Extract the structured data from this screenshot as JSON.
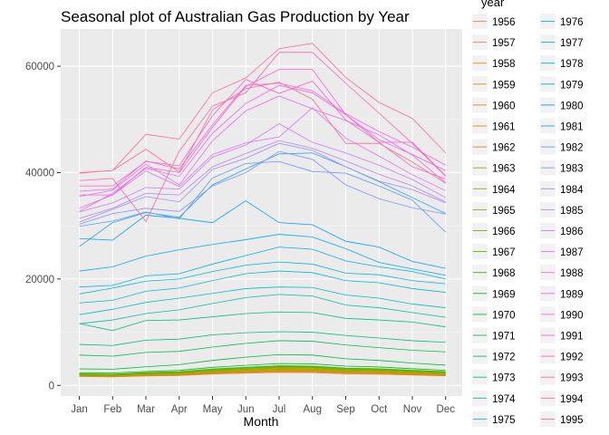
{
  "chart_data": {
    "type": "line",
    "title": "Seasonal plot of Australian Gas Production by Year",
    "xlabel": "Month",
    "ylabel": "",
    "legend_title": "year",
    "legend_position": "right",
    "grid": true,
    "categories": [
      "Jan",
      "Feb",
      "Mar",
      "Apr",
      "May",
      "Jun",
      "Jul",
      "Aug",
      "Sep",
      "Oct",
      "Nov",
      "Dec"
    ],
    "ylim": [
      -2000,
      67000
    ],
    "yticks": [
      0,
      20000,
      40000,
      60000
    ],
    "ytick_labels": [
      "0",
      "20000",
      "40000",
      "60000"
    ],
    "series": [
      {
        "name": "1956",
        "color": "#F8766D",
        "values": [
          1709,
          1646,
          1794,
          1878,
          2173,
          2321,
          2468,
          2416,
          2184,
          2121,
          1962,
          1825
        ]
      },
      {
        "name": "1957",
        "color": "#F07F54",
        "values": [
          1690,
          1607,
          1774,
          1862,
          2145,
          2315,
          2481,
          2429,
          2202,
          2129,
          1955,
          1803
        ]
      },
      {
        "name": "1958",
        "color": "#E7861B",
        "values": [
          1715,
          1640,
          1821,
          1910,
          2227,
          2401,
          2570,
          2526,
          2279,
          2207,
          2027,
          1869
        ]
      },
      {
        "name": "1959",
        "color": "#DC8E00",
        "values": [
          1767,
          1668,
          1882,
          1980,
          2322,
          2510,
          2690,
          2648,
          2389,
          2309,
          2117,
          1945
        ]
      },
      {
        "name": "1960",
        "color": "#D09400",
        "values": [
          1790,
          1712,
          1925,
          2036,
          2399,
          2600,
          2791,
          2745,
          2477,
          2393,
          2191,
          2012
        ]
      },
      {
        "name": "1961",
        "color": "#C49A00",
        "values": [
          1811,
          1757,
          1979,
          2090,
          2463,
          2689,
          2889,
          2844,
          2563,
          2474,
          2264,
          2076
        ]
      },
      {
        "name": "1962",
        "color": "#B69F00",
        "values": [
          1853,
          1804,
          2035,
          2155,
          2547,
          2786,
          3003,
          2952,
          2655,
          2562,
          2342,
          2144
        ]
      },
      {
        "name": "1963",
        "color": "#A8A400",
        "values": [
          1900,
          1849,
          2091,
          2215,
          2626,
          2878,
          3109,
          3055,
          2744,
          2646,
          2418,
          2211
        ]
      },
      {
        "name": "1964",
        "color": "#97A900",
        "values": [
          1954,
          1904,
          2158,
          2287,
          2718,
          2987,
          3230,
          3176,
          2850,
          2744,
          2508,
          2291
        ]
      },
      {
        "name": "1965",
        "color": "#86AC00",
        "values": [
          2006,
          1953,
          2223,
          2360,
          2810,
          3096,
          3353,
          3297,
          2955,
          2843,
          2595,
          2366
        ]
      },
      {
        "name": "1966",
        "color": "#72B000",
        "values": [
          2064,
          2015,
          2296,
          2440,
          2912,
          3212,
          3480,
          3421,
          3066,
          2947,
          2689,
          2449
        ]
      },
      {
        "name": "1967",
        "color": "#5BB300",
        "values": [
          2112,
          2063,
          2355,
          2505,
          2995,
          3307,
          3586,
          3524,
          3157,
          3034,
          2767,
          2517
        ]
      },
      {
        "name": "1968",
        "color": "#39B600",
        "values": [
          2165,
          2115,
          2418,
          2575,
          3085,
          3411,
          3702,
          3637,
          3257,
          3128,
          2851,
          2591
        ]
      },
      {
        "name": "1969",
        "color": "#00B81F",
        "values": [
          2380,
          2350,
          2620,
          2820,
          3400,
          3770,
          4110,
          4060,
          3620,
          3460,
          3140,
          2840
        ]
      },
      {
        "name": "1970",
        "color": "#00BA38",
        "values": [
          3100,
          3050,
          3500,
          3900,
          4700,
          5300,
          5800,
          5700,
          5000,
          4700,
          4200,
          3800
        ]
      },
      {
        "name": "1971",
        "color": "#00BC59",
        "values": [
          5700,
          5500,
          6200,
          6400,
          7200,
          7900,
          8400,
          8300,
          7600,
          7100,
          6600,
          6300
        ]
      },
      {
        "name": "1972",
        "color": "#00BF72",
        "values": [
          7700,
          7500,
          8500,
          8700,
          9500,
          9900,
          10100,
          10000,
          9400,
          8900,
          8400,
          8100
        ]
      },
      {
        "name": "1973",
        "color": "#00C08B",
        "values": [
          11600,
          10300,
          12200,
          12300,
          12900,
          13500,
          13800,
          13700,
          12600,
          12300,
          11900,
          11000
        ]
      },
      {
        "name": "1974",
        "color": "#00C1A2",
        "values": [
          11600,
          12300,
          13500,
          14200,
          15400,
          16500,
          17100,
          16800,
          15100,
          14600,
          13700,
          12800
        ]
      },
      {
        "name": "1975",
        "color": "#00C0B8",
        "values": [
          13300,
          14300,
          15600,
          16400,
          17300,
          18200,
          18500,
          18400,
          17000,
          16400,
          15300,
          14600
        ]
      },
      {
        "name": "1976",
        "color": "#00BDC9",
        "values": [
          15500,
          16000,
          17700,
          18300,
          19700,
          21000,
          21500,
          21200,
          19700,
          19300,
          18200,
          17500
        ]
      },
      {
        "name": "1977",
        "color": "#00B9DA",
        "values": [
          17200,
          18300,
          19600,
          20000,
          21400,
          22600,
          23200,
          22800,
          21100,
          20800,
          19700,
          19100
        ]
      },
      {
        "name": "1978",
        "color": "#00B2E8",
        "values": [
          18500,
          18800,
          20600,
          21000,
          22800,
          24400,
          26000,
          25600,
          23400,
          22300,
          21400,
          20000
        ]
      },
      {
        "name": "1979",
        "color": "#00ABF3",
        "values": [
          21500,
          22300,
          24300,
          25500,
          26500,
          27400,
          28400,
          27900,
          25700,
          23100,
          21900,
          20700
        ]
      },
      {
        "name": "1980",
        "color": "#00A3FA",
        "values": [
          27600,
          27300,
          32000,
          31400,
          30600,
          34700,
          30600,
          30200,
          27100,
          26000,
          23300,
          22000
        ]
      },
      {
        "name": "1981",
        "color": "#26A0FF",
        "values": [
          26100,
          30600,
          32500,
          31600,
          37700,
          40700,
          43500,
          43700,
          41100,
          38300,
          35300,
          32300
        ]
      },
      {
        "name": "1982",
        "color": "#619CFF",
        "values": [
          29900,
          30900,
          32600,
          31300,
          39000,
          41700,
          42100,
          40200,
          39900,
          37500,
          34800,
          28800
        ]
      },
      {
        "name": "1983",
        "color": "#8494FF",
        "values": [
          30300,
          32300,
          33300,
          32700,
          37500,
          40000,
          44000,
          42500,
          37700,
          35100,
          33400,
          32200
        ]
      },
      {
        "name": "1984",
        "color": "#A38BFF",
        "values": [
          30700,
          33100,
          35500,
          34500,
          40600,
          42700,
          45500,
          44200,
          41100,
          38400,
          36800,
          34300
        ]
      },
      {
        "name": "1985",
        "color": "#B983FF",
        "values": [
          31400,
          33300,
          36100,
          35800,
          41100,
          43600,
          46000,
          44600,
          42200,
          39700,
          37500,
          34500
        ]
      },
      {
        "name": "1986",
        "color": "#CC7BFF",
        "values": [
          32600,
          34300,
          37200,
          36900,
          42900,
          45200,
          49200,
          45700,
          43700,
          41400,
          38700,
          35300
        ]
      },
      {
        "name": "1987",
        "color": "#DB72FB",
        "values": [
          33300,
          35800,
          40300,
          37400,
          43400,
          45600,
          46700,
          52200,
          46500,
          43100,
          39600,
          36600
        ]
      },
      {
        "name": "1988",
        "color": "#E76BF3",
        "values": [
          35500,
          36700,
          41600,
          37700,
          46000,
          51600,
          54400,
          52000,
          49800,
          47100,
          43300,
          38100
        ]
      },
      {
        "name": "1989",
        "color": "#F066EA",
        "values": [
          32700,
          36100,
          40800,
          39300,
          47400,
          53000,
          56400,
          55000,
          50900,
          46200,
          43400,
          40400
        ]
      },
      {
        "name": "1990",
        "color": "#F763E0",
        "values": [
          36500,
          36900,
          42200,
          40700,
          49000,
          56400,
          56800,
          55400,
          51100,
          47700,
          44800,
          41400
        ]
      },
      {
        "name": "1991",
        "color": "#FC61D5",
        "values": [
          35800,
          35800,
          41000,
          40000,
          48500,
          56200,
          59400,
          59400,
          50900,
          45700,
          45700,
          39400
        ]
      },
      {
        "name": "1992",
        "color": "#FF62BC",
        "values": [
          37500,
          37500,
          42100,
          41300,
          50700,
          57500,
          54900,
          57200,
          49900,
          45700,
          41100,
          38800
        ]
      },
      {
        "name": "1993",
        "color": "#FF65AE",
        "values": [
          38500,
          38900,
          30800,
          44000,
          52500,
          55000,
          62600,
          62600,
          56800,
          51200,
          45500,
          39300
        ]
      },
      {
        "name": "1994",
        "color": "#FF6A98",
        "values": [
          39900,
          40400,
          47200,
          46300,
          55000,
          57800,
          63300,
          64300,
          57900,
          53200,
          50200,
          43700
        ]
      },
      {
        "name": "1995",
        "color": "#FF6C91",
        "values": [
          40000,
          40400,
          44400,
          40100,
          51800,
          55800,
          57000,
          53800,
          45500,
          45500,
          42000,
          38000
        ]
      }
    ]
  }
}
